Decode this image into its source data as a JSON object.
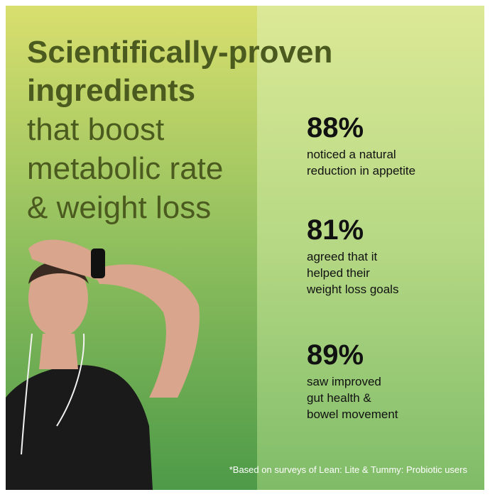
{
  "headline": {
    "lines": [
      "Scientifically-proven",
      "ingredients",
      "that boost",
      "metabolic rate",
      "& weight loss"
    ]
  },
  "stats": [
    {
      "value": "88%",
      "description": [
        "noticed a natural",
        "reduction in appetite"
      ]
    },
    {
      "value": "81%",
      "description": [
        "agreed that it",
        "helped their",
        "weight loss goals"
      ]
    },
    {
      "value": "89%",
      "description": [
        "saw improved",
        "gut health &",
        "bowel movement"
      ]
    }
  ],
  "footnote": "*Based on surveys of Lean: Lite & Tummy: Probiotic users"
}
